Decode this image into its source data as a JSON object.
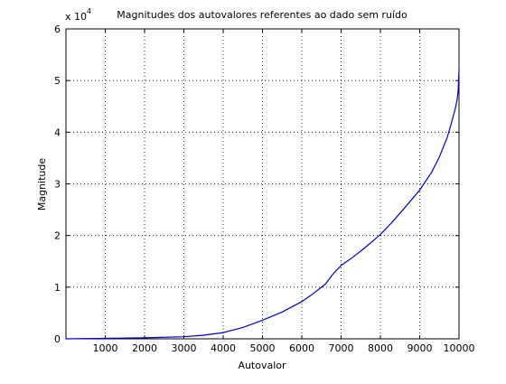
{
  "chart_data": {
    "type": "line",
    "title": "Magnitudes dos autovalores referentes ao dado sem ruído",
    "xlabel": "Autovalor",
    "ylabel": "Magnitude",
    "y_exponent_label": "x 10",
    "y_exponent_power": "4",
    "xlim": [
      0,
      10000
    ],
    "ylim": [
      0,
      6
    ],
    "xticks": [
      1000,
      2000,
      3000,
      4000,
      5000,
      6000,
      7000,
      8000,
      9000,
      10000
    ],
    "yticks": [
      0,
      1,
      2,
      3,
      4,
      5,
      6
    ],
    "grid": true,
    "line_color": "#0000cc",
    "series": [
      {
        "x": [
          0,
          1000,
          2000,
          3000,
          3500,
          4000,
          4500,
          5000,
          5500,
          6000,
          6300,
          6600,
          6800,
          7000,
          7300,
          7600,
          8000,
          8300,
          8600,
          9000,
          9300,
          9500,
          9700,
          9800,
          9900,
          9950,
          9980,
          10000
        ],
        "y": [
          0,
          0.01,
          0.02,
          0.04,
          0.07,
          0.12,
          0.22,
          0.36,
          0.52,
          0.72,
          0.88,
          1.06,
          1.26,
          1.42,
          1.58,
          1.76,
          2.02,
          2.26,
          2.52,
          2.88,
          3.22,
          3.52,
          3.9,
          4.16,
          4.44,
          4.62,
          4.82,
          5.2
        ]
      }
    ]
  }
}
